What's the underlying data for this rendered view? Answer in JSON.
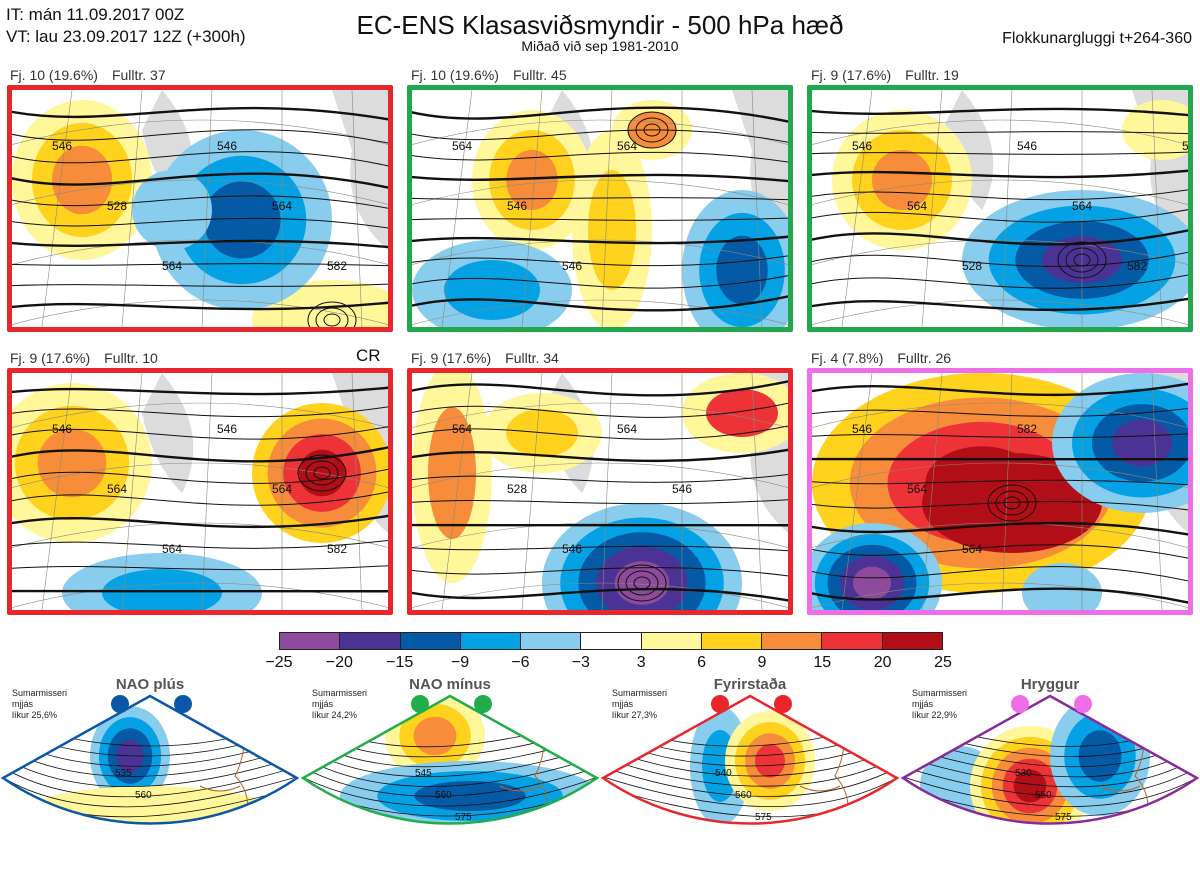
{
  "header": {
    "it": "IT: mán 11.09.2017 00Z",
    "vt": "VT: lau 23.09.2017 12Z  (+300h)",
    "title": "EC-ENS Klasasviðsmyndir - 500 hPa hæð",
    "subtitle": "Miðað við sep 1981-2010",
    "window": "Flokkunargluggi t+264-360"
  },
  "cr_label": "CR",
  "maps": [
    {
      "count": "Fj. 10 (19.6%)",
      "rep": "Fulltr. 37",
      "frame_color": "#e8262b",
      "contours": [
        "546",
        "528",
        "564",
        "546",
        "564",
        "582"
      ]
    },
    {
      "count": "Fj. 10 (19.6%)",
      "rep": "Fulltr. 45",
      "frame_color": "#22a84a",
      "contours": [
        "564",
        "546",
        "546",
        "564"
      ]
    },
    {
      "count": "Fj. 9 (17.6%)",
      "rep": "Fulltr. 19",
      "frame_color": "#22a84a",
      "contours": [
        "546",
        "564",
        "528",
        "546",
        "564",
        "582",
        "564"
      ]
    },
    {
      "count": "Fj. 9 (17.6%)",
      "rep": "Fulltr. 10",
      "frame_color": "#e8262b",
      "contours": [
        "546",
        "564",
        "564",
        "546",
        "564",
        "582"
      ]
    },
    {
      "count": "Fj. 9 (17.6%)",
      "rep": "Fulltr. 34",
      "frame_color": "#e8262b",
      "contours": [
        "564",
        "528",
        "546",
        "564",
        "546"
      ]
    },
    {
      "count": "Fj. 4 (7.8%)",
      "rep": "Fulltr. 26",
      "frame_color": "#ee6ee8",
      "contours": [
        "546",
        "564",
        "564",
        "582"
      ]
    }
  ],
  "legend": {
    "colors": [
      "#8e4a9c",
      "#4a3394",
      "#055aa6",
      "#04a2e4",
      "#88ccee",
      "#ffffff",
      "#fff79a",
      "#ffd21e",
      "#f78d3a",
      "#ee3338",
      "#b20e18"
    ],
    "ticks": [
      "−25",
      "−20",
      "−15",
      "−9",
      "−6",
      "−3",
      "3",
      "6",
      "9",
      "15",
      "20",
      "25"
    ]
  },
  "regimes": [
    {
      "name": "NAO plús",
      "info": [
        "Sumarmisseri",
        "mjjás",
        "líkur 25,6%"
      ],
      "color": "#0c58a8",
      "labels": [
        "535",
        "560"
      ]
    },
    {
      "name": "NAO mínus",
      "info": [
        "Sumarmisseri",
        "mjjás",
        "líkur 24,2%"
      ],
      "color": "#21ad4b",
      "labels": [
        "545",
        "560",
        "575"
      ]
    },
    {
      "name": "Fyrirstaða",
      "info": [
        "Sumarmisseri",
        "mjjás",
        "líkur 27,3%"
      ],
      "color": "#e8262b",
      "labels": [
        "540",
        "560",
        "575"
      ]
    },
    {
      "name": "Hryggur",
      "info": [
        "Sumarmisseri",
        "mjjás",
        "líkur 22,9%"
      ],
      "color": "#ee6ee8",
      "border": "#8a2a9a",
      "labels": [
        "530",
        "550",
        "575"
      ]
    }
  ]
}
